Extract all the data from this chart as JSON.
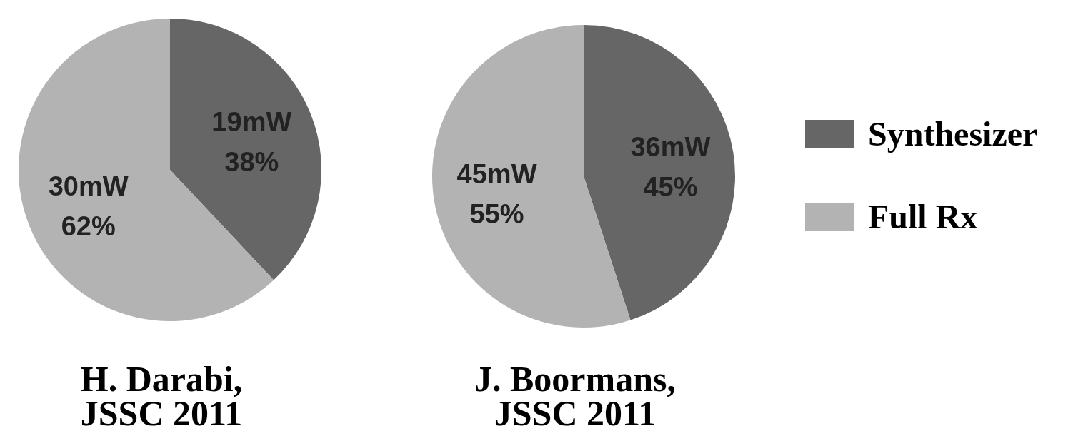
{
  "chart_data": [
    {
      "type": "pie",
      "title": "H. Darabi,\nJSSC 2011",
      "categories": [
        null,
        null
      ],
      "values": [
        38,
        62
      ],
      "colors": [
        "#666666",
        "#b3b3b3"
      ],
      "value_labels": [
        "19mW\n38%",
        "30mW\n62%"
      ]
    },
    {
      "type": "pie",
      "title": "J. Boormans,\nJSSC 2011",
      "categories": [
        "Synthesizer",
        "Full Rx"
      ],
      "values": [
        45,
        55
      ],
      "colors": [
        "#666666",
        "#b3b3b3"
      ],
      "value_labels": [
        "36mW\n45%",
        "45mW\n55%"
      ],
      "legend": "right"
    }
  ]
}
